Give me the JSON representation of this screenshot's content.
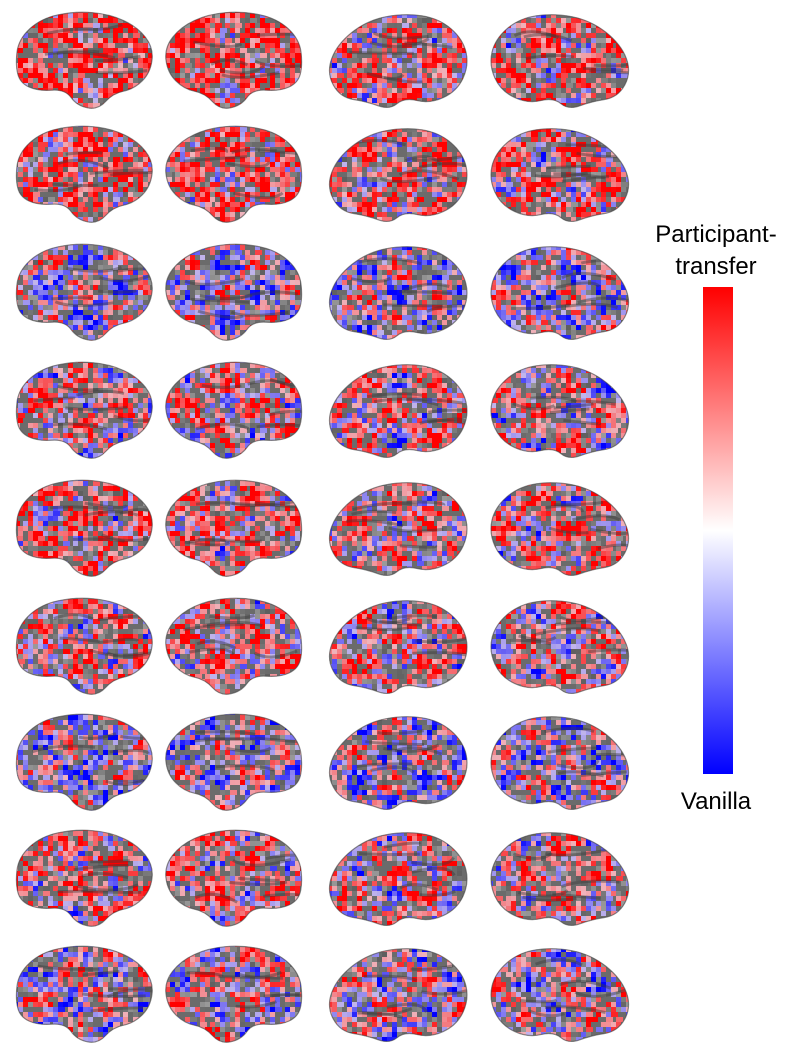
{
  "colorbar": {
    "top_label_line1": "Participant-",
    "top_label_line2": "transfer",
    "bottom_label": "Vanilla",
    "top_color": "#ff0000",
    "mid_color": "#ffffff",
    "bottom_color": "#0000ff"
  },
  "surface": {
    "base_color": "#6b6b6b",
    "positive_color": "#ff0000",
    "negative_color": "#0000ff"
  },
  "grid": {
    "rows": 9,
    "views_per_row": [
      "lateral-left",
      "lateral-right",
      "medial-left",
      "medial-right"
    ],
    "row_bias": [
      0.55,
      0.45,
      -0.05,
      0.25,
      0.35,
      0.3,
      -0.1,
      0.3,
      0.05
    ]
  }
}
